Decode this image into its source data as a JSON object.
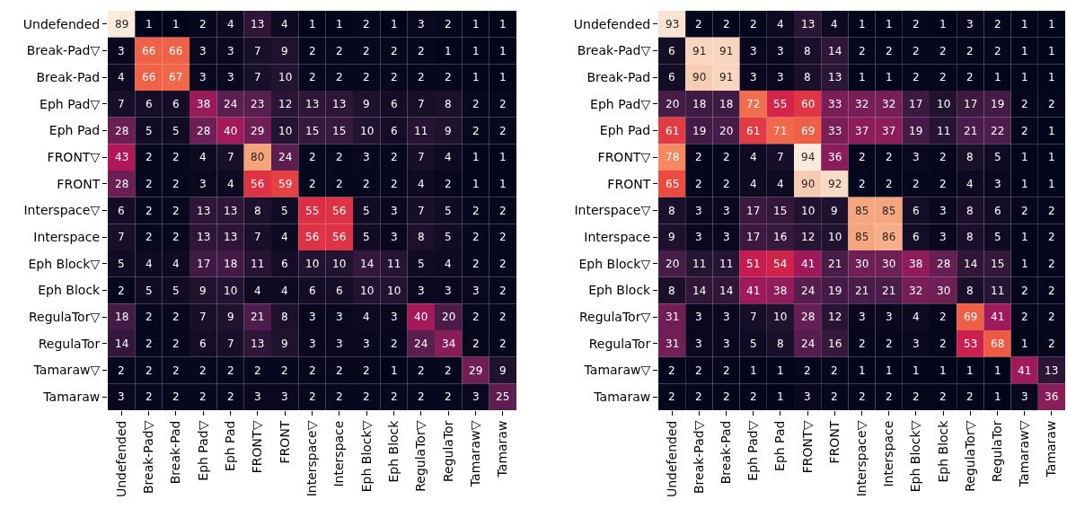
{
  "chart_data": [
    {
      "type": "heatmap",
      "data_labels": true,
      "categories": [
        "Undefended",
        "Break-Pad▽",
        "Break-Pad",
        "Eph Pad▽",
        "Eph Pad",
        "FRONT▽",
        "FRONT",
        "Interspace▽",
        "Interspace",
        "Eph Block▽",
        "Eph Block",
        "RegulaTor▽",
        "RegulaTor",
        "Tamaraw▽",
        "Tamaraw"
      ],
      "y_categories": [
        "Undefended",
        "Break-Pad▽",
        "Break-Pad",
        "Eph Pad▽",
        "Eph Pad",
        "FRONT▽",
        "FRONT",
        "Interspace▽",
        "Interspace",
        "Eph Block▽",
        "Eph Block",
        "RegulaTor▽",
        "RegulaTor",
        "Tamaraw▽",
        "Tamaraw"
      ],
      "cells": [
        [
          89,
          1,
          1,
          2,
          4,
          13,
          4,
          1,
          1,
          2,
          1,
          3,
          2,
          1,
          1
        ],
        [
          3,
          66,
          66,
          3,
          3,
          7,
          9,
          2,
          2,
          2,
          2,
          2,
          1,
          1,
          1
        ],
        [
          4,
          66,
          67,
          3,
          3,
          7,
          10,
          2,
          2,
          2,
          2,
          2,
          2,
          1,
          1
        ],
        [
          7,
          6,
          6,
          38,
          24,
          23,
          12,
          13,
          13,
          9,
          6,
          7,
          8,
          2,
          2
        ],
        [
          28,
          5,
          5,
          28,
          40,
          29,
          10,
          15,
          15,
          10,
          6,
          11,
          9,
          2,
          2
        ],
        [
          43,
          2,
          2,
          4,
          7,
          80,
          24,
          2,
          2,
          3,
          2,
          7,
          4,
          1,
          1
        ],
        [
          28,
          2,
          2,
          3,
          4,
          56,
          59,
          2,
          2,
          2,
          2,
          4,
          2,
          1,
          1
        ],
        [
          6,
          2,
          2,
          13,
          13,
          8,
          5,
          55,
          56,
          5,
          3,
          7,
          5,
          2,
          2
        ],
        [
          7,
          2,
          2,
          13,
          13,
          7,
          4,
          56,
          56,
          5,
          3,
          8,
          5,
          2,
          2
        ],
        [
          5,
          4,
          4,
          17,
          18,
          11,
          6,
          10,
          10,
          14,
          11,
          5,
          4,
          2,
          2
        ],
        [
          2,
          5,
          5,
          9,
          10,
          4,
          4,
          6,
          6,
          10,
          10,
          3,
          3,
          3,
          2
        ],
        [
          18,
          2,
          2,
          7,
          9,
          21,
          8,
          3,
          3,
          4,
          3,
          40,
          20,
          2,
          2
        ],
        [
          14,
          2,
          2,
          6,
          7,
          13,
          9,
          3,
          3,
          3,
          2,
          24,
          34,
          2,
          2
        ],
        [
          2,
          2,
          2,
          2,
          2,
          2,
          2,
          2,
          2,
          2,
          1,
          2,
          2,
          29,
          9
        ],
        [
          3,
          2,
          2,
          2,
          2,
          3,
          3,
          2,
          2,
          2,
          2,
          2,
          2,
          3,
          25
        ]
      ]
    },
    {
      "type": "heatmap",
      "data_labels": true,
      "categories": [
        "Undefended",
        "Break-Pad▽",
        "Break-Pad",
        "Eph Pad▽",
        "Eph Pad",
        "FRONT▽",
        "FRONT",
        "Interspace▽",
        "Interspace",
        "Eph Block▽",
        "Eph Block",
        "RegulaTor▽",
        "RegulaTor",
        "Tamaraw▽",
        "Tamaraw"
      ],
      "y_categories": [
        "Undefended",
        "Break-Pad▽",
        "Break-Pad",
        "Eph Pad▽",
        "Eph Pad",
        "FRONT▽",
        "FRONT",
        "Interspace▽",
        "Interspace",
        "Eph Block▽",
        "Eph Block",
        "RegulaTor▽",
        "RegulaTor",
        "Tamaraw▽",
        "Tamaraw"
      ],
      "cells": [
        [
          93,
          2,
          2,
          2,
          4,
          13,
          4,
          1,
          1,
          2,
          1,
          3,
          2,
          1,
          1
        ],
        [
          6,
          91,
          91,
          3,
          3,
          8,
          14,
          2,
          2,
          2,
          2,
          2,
          2,
          1,
          1
        ],
        [
          6,
          90,
          91,
          3,
          3,
          8,
          13,
          1,
          1,
          2,
          2,
          2,
          1,
          1,
          1
        ],
        [
          20,
          18,
          18,
          72,
          55,
          60,
          33,
          32,
          32,
          17,
          10,
          17,
          19,
          2,
          2
        ],
        [
          61,
          19,
          20,
          61,
          71,
          69,
          33,
          37,
          37,
          19,
          11,
          21,
          22,
          2,
          1
        ],
        [
          78,
          2,
          2,
          4,
          7,
          94,
          36,
          2,
          2,
          3,
          2,
          8,
          5,
          1,
          1
        ],
        [
          65,
          2,
          2,
          4,
          4,
          90,
          92,
          2,
          2,
          2,
          2,
          4,
          3,
          1,
          1
        ],
        [
          8,
          3,
          3,
          17,
          15,
          10,
          9,
          85,
          85,
          6,
          3,
          8,
          6,
          2,
          2
        ],
        [
          9,
          3,
          3,
          17,
          16,
          12,
          10,
          85,
          86,
          6,
          3,
          8,
          5,
          1,
          2
        ],
        [
          20,
          11,
          11,
          51,
          54,
          41,
          21,
          30,
          30,
          38,
          28,
          14,
          15,
          1,
          2
        ],
        [
          8,
          14,
          14,
          41,
          38,
          24,
          19,
          21,
          21,
          32,
          30,
          8,
          11,
          2,
          2
        ],
        [
          31,
          3,
          3,
          7,
          10,
          28,
          12,
          3,
          3,
          4,
          2,
          69,
          41,
          2,
          2
        ],
        [
          31,
          3,
          3,
          5,
          8,
          24,
          16,
          2,
          2,
          3,
          2,
          53,
          68,
          1,
          2
        ],
        [
          2,
          2,
          2,
          1,
          1,
          2,
          2,
          1,
          1,
          1,
          1,
          1,
          1,
          41,
          13
        ],
        [
          2,
          2,
          2,
          2,
          1,
          3,
          2,
          2,
          2,
          2,
          2,
          2,
          1,
          3,
          36
        ]
      ]
    }
  ]
}
